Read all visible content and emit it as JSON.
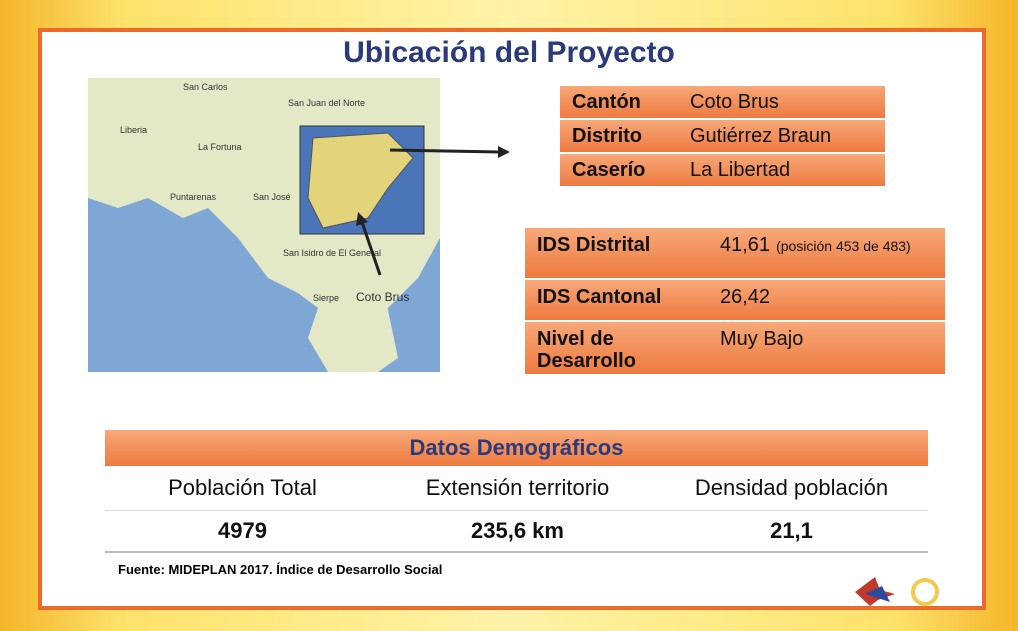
{
  "header": {
    "title": "Ubicación del Proyecto"
  },
  "map": {
    "labels": [
      "San Carlos",
      "San Juan del Norte",
      "Liberia",
      "La Fortuna",
      "Puntarenas",
      "San José",
      "San Isidro de El General",
      "Sierpe",
      "Coto Brus"
    ]
  },
  "location": {
    "rows": [
      [
        "Cantón",
        "Coto Brus"
      ],
      [
        "Distrito",
        "Gutiérrez Braun"
      ],
      [
        "Caserío",
        "La Libertad"
      ]
    ]
  },
  "ids": {
    "rows": [
      [
        "IDS Distrital",
        "41,61",
        "(posición 453 de 483)"
      ],
      [
        "IDS Cantonal",
        "26,42"
      ],
      [
        "Nivel de Desarrollo",
        "Muy Bajo"
      ]
    ]
  },
  "demographics": {
    "title": "Datos Demográficos",
    "headers": [
      "Población Total",
      "Extensión territorio",
      "Densidad población"
    ],
    "values": [
      "4979",
      "235,6 km",
      "21,1"
    ]
  },
  "footer": {
    "source": "Fuente: MIDEPLAN 2017. Índice de Desarrollo Social"
  }
}
